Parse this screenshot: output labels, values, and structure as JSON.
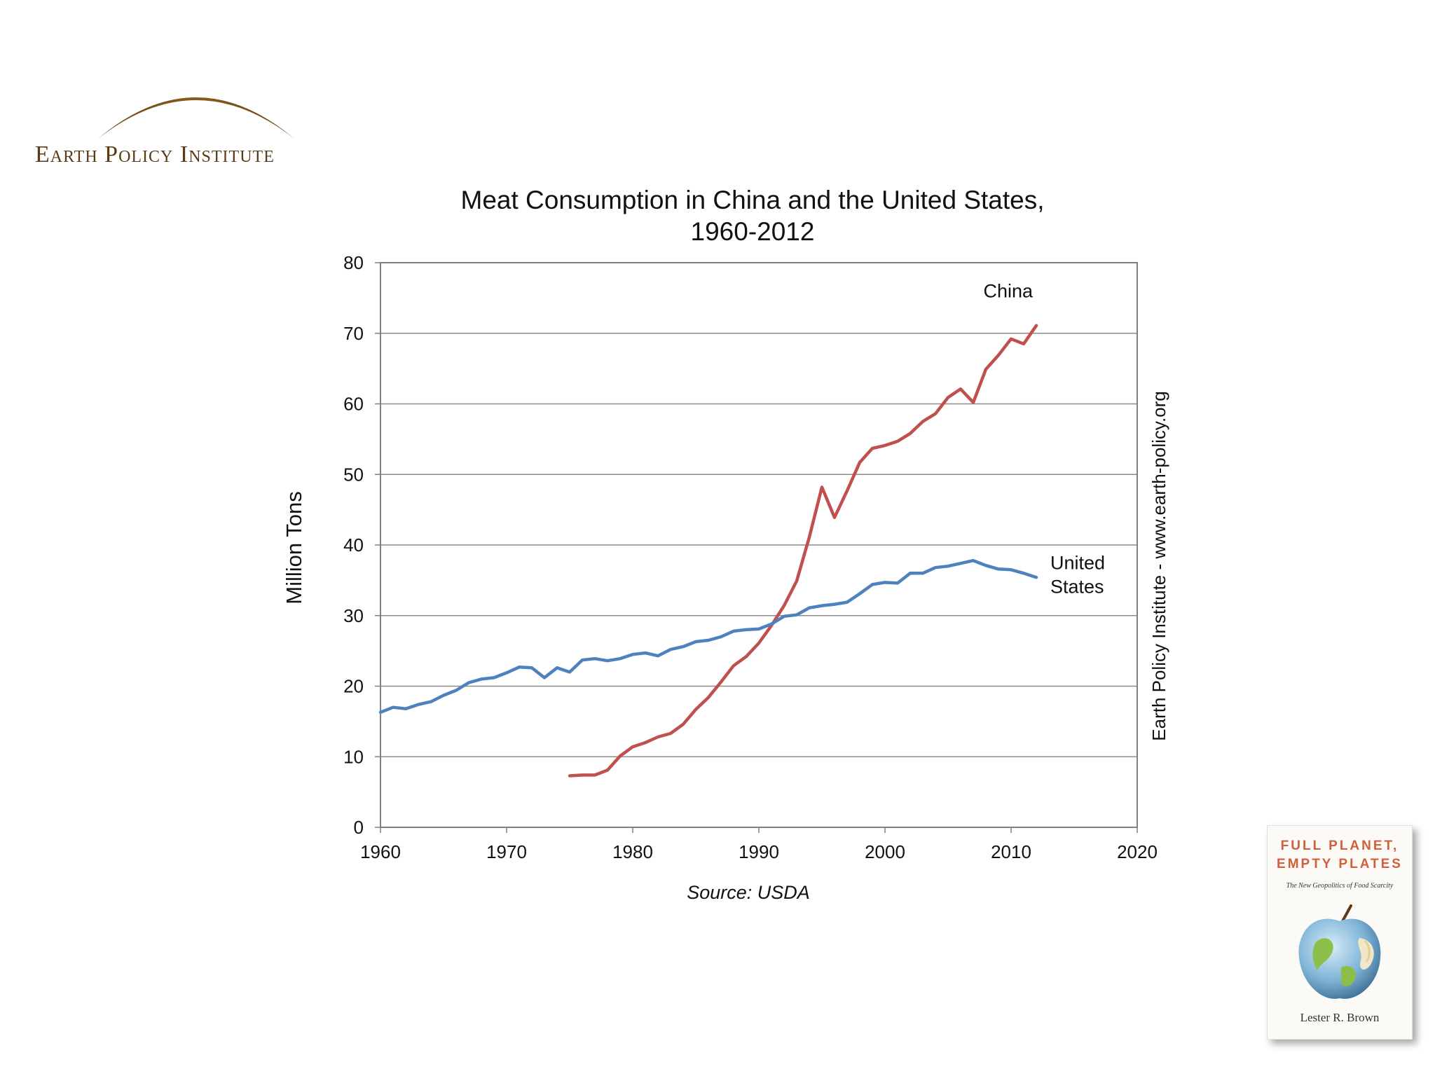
{
  "logo": {
    "text": "Earth Policy Institute"
  },
  "credit": "Earth Policy Institute - www.earth-policy.org",
  "book": {
    "title_line1": "FULL PLANET,",
    "title_line2": "EMPTY PLATES",
    "subtitle": "The New Geopolitics of Food Scarcity",
    "author": "Lester R. Brown"
  },
  "chart_data": {
    "type": "line",
    "title_line1": "Meat Consumption in China and the United States,",
    "title_line2": "1960-2012",
    "xlabel": "",
    "ylabel": "Million Tons",
    "source": "Source: USDA",
    "xlim": [
      1960,
      2020
    ],
    "ylim": [
      0,
      80
    ],
    "xticks": [
      1960,
      1970,
      1980,
      1990,
      2000,
      2010,
      2020
    ],
    "yticks": [
      0,
      10,
      20,
      30,
      40,
      50,
      60,
      70,
      80
    ],
    "grid": true,
    "series": [
      {
        "name": "China",
        "color": "#c0504d",
        "x": [
          1975,
          1976,
          1977,
          1978,
          1979,
          1980,
          1981,
          1982,
          1983,
          1984,
          1985,
          1986,
          1987,
          1988,
          1989,
          1990,
          1991,
          1992,
          1993,
          1994,
          1995,
          1996,
          1997,
          1998,
          1999,
          2000,
          2001,
          2002,
          2003,
          2004,
          2005,
          2006,
          2007,
          2008,
          2009,
          2010,
          2011,
          2012
        ],
        "values": [
          7.3,
          7.4,
          7.4,
          8.1,
          10.1,
          11.4,
          12.0,
          12.8,
          13.3,
          14.6,
          16.7,
          18.4,
          20.6,
          22.9,
          24.2,
          26.1,
          28.6,
          31.4,
          34.9,
          41.1,
          48.2,
          43.9,
          47.7,
          51.7,
          53.7,
          54.1,
          54.7,
          55.8,
          57.5,
          58.6,
          60.9,
          62.1,
          60.2,
          64.9,
          66.9,
          69.2,
          68.5,
          71.1
        ]
      },
      {
        "name": "United States",
        "color": "#4f81bd",
        "x": [
          1960,
          1961,
          1962,
          1963,
          1964,
          1965,
          1966,
          1967,
          1968,
          1969,
          1970,
          1971,
          1972,
          1973,
          1974,
          1975,
          1976,
          1977,
          1978,
          1979,
          1980,
          1981,
          1982,
          1983,
          1984,
          1985,
          1986,
          1987,
          1988,
          1989,
          1990,
          1991,
          1992,
          1993,
          1994,
          1995,
          1996,
          1997,
          1998,
          1999,
          2000,
          2001,
          2002,
          2003,
          2004,
          2005,
          2006,
          2007,
          2008,
          2009,
          2010,
          2011,
          2012
        ],
        "values": [
          16.3,
          17.0,
          16.8,
          17.4,
          17.8,
          18.7,
          19.4,
          20.5,
          21.0,
          21.2,
          21.9,
          22.7,
          22.6,
          21.2,
          22.6,
          22.0,
          23.7,
          23.9,
          23.6,
          23.9,
          24.5,
          24.7,
          24.3,
          25.2,
          25.6,
          26.3,
          26.5,
          27.0,
          27.8,
          28.0,
          28.1,
          28.8,
          29.9,
          30.1,
          31.1,
          31.4,
          31.6,
          31.9,
          33.1,
          34.4,
          34.7,
          34.6,
          36.0,
          36.0,
          36.8,
          37.0,
          37.4,
          37.8,
          37.1,
          36.6,
          36.5,
          36.0,
          35.4
        ]
      }
    ],
    "annotations": [
      {
        "series": "China",
        "lines": [
          "China"
        ]
      },
      {
        "series": "United States",
        "lines": [
          "United",
          "States"
        ]
      }
    ]
  }
}
